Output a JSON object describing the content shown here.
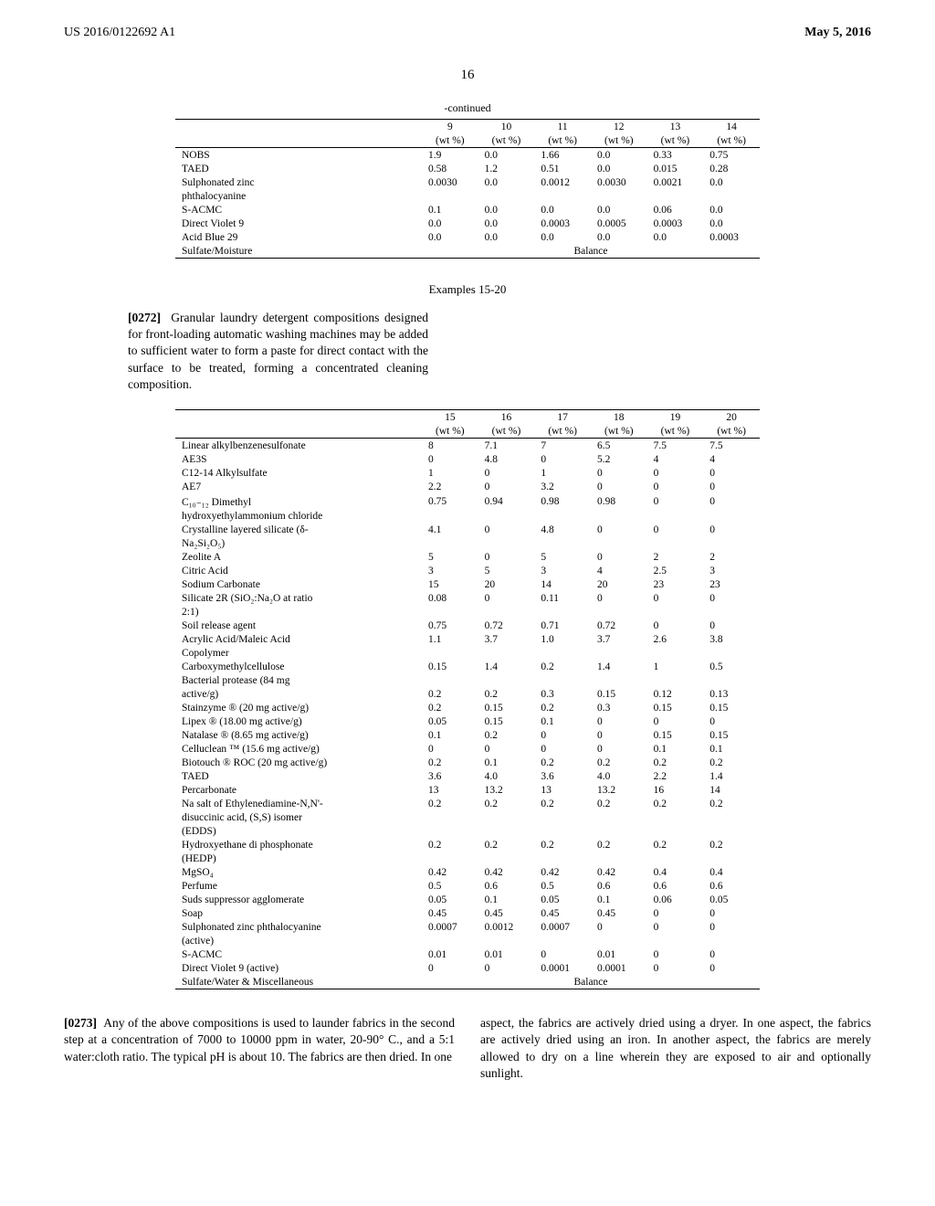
{
  "header": {
    "left": "US 2016/0122692 A1",
    "right": "May 5, 2016"
  },
  "page_number": "16",
  "continued_label": "-continued",
  "table1": {
    "col_headers_top": [
      "",
      "9",
      "10",
      "11",
      "12",
      "13",
      "14"
    ],
    "col_headers_bot": [
      "",
      "(wt %)",
      "(wt %)",
      "(wt %)",
      "(wt %)",
      "(wt %)",
      "(wt %)"
    ],
    "rows": [
      [
        "NOBS",
        "1.9",
        "0.0",
        "1.66",
        "0.0",
        "0.33",
        "0.75"
      ],
      [
        "TAED",
        "0.58",
        "1.2",
        "0.51",
        "0.0",
        "0.015",
        "0.28"
      ],
      [
        "Sulphonated zinc",
        "0.0030",
        "0.0",
        "0.0012",
        "0.0030",
        "0.0021",
        "0.0"
      ],
      [
        "phthalocyanine",
        "",
        "",
        "",
        "",
        "",
        ""
      ],
      [
        "S-ACMC",
        "0.1",
        "0.0",
        "0.0",
        "0.0",
        "0.06",
        "0.0"
      ],
      [
        "Direct Violet 9",
        "0.0",
        "0.0",
        "0.0003",
        "0.0005",
        "0.0003",
        "0.0"
      ],
      [
        "Acid Blue 29",
        "0.0",
        "0.0",
        "0.0",
        "0.0",
        "0.0",
        "0.0003"
      ]
    ],
    "balance_label": "Sulfate/Moisture",
    "balance_value": "Balance"
  },
  "examples_heading": "Examples 15-20",
  "para1_num": "[0272]",
  "para1": "Granular laundry detergent compositions designed for front-loading automatic washing machines may be added to sufficient water to form a paste for direct contact with the surface to be treated, forming a concentrated cleaning composition.",
  "table2": {
    "col_headers_top": [
      "",
      "15",
      "16",
      "17",
      "18",
      "19",
      "20"
    ],
    "col_headers_bot": [
      "",
      "(wt %)",
      "(wt %)",
      "(wt %)",
      "(wt %)",
      "(wt %)",
      "(wt %)"
    ],
    "rows": [
      [
        "Linear alkylbenzenesulfonate",
        "8",
        "7.1",
        "7",
        "6.5",
        "7.5",
        "7.5"
      ],
      [
        "AE3S",
        "0",
        "4.8",
        "0",
        "5.2",
        "4",
        "4"
      ],
      [
        "C12-14 Alkylsulfate",
        "1",
        "0",
        "1",
        "0",
        "0",
        "0"
      ],
      [
        "AE7",
        "2.2",
        "0",
        "3.2",
        "0",
        "0",
        "0"
      ],
      [
        "C₁₀₋₁₂ Dimethyl",
        "0.75",
        "0.94",
        "0.98",
        "0.98",
        "0",
        "0"
      ],
      [
        "hydroxyethylammonium chloride",
        "",
        "",
        "",
        "",
        "",
        ""
      ],
      [
        "Crystalline layered silicate (δ-",
        "4.1",
        "0",
        "4.8",
        "0",
        "0",
        "0"
      ],
      [
        "Na₂Si₂O₅)",
        "",
        "",
        "",
        "",
        "",
        ""
      ],
      [
        "Zeolite A",
        "5",
        "0",
        "5",
        "0",
        "2",
        "2"
      ],
      [
        "Citric Acid",
        "3",
        "5",
        "3",
        "4",
        "2.5",
        "3"
      ],
      [
        "Sodium Carbonate",
        "15",
        "20",
        "14",
        "20",
        "23",
        "23"
      ],
      [
        "Silicate 2R (SiO₂:Na₂O at ratio",
        "0.08",
        "0",
        "0.11",
        "0",
        "0",
        "0"
      ],
      [
        "2:1)",
        "",
        "",
        "",
        "",
        "",
        ""
      ],
      [
        "Soil release agent",
        "0.75",
        "0.72",
        "0.71",
        "0.72",
        "0",
        "0"
      ],
      [
        "Acrylic Acid/Maleic Acid",
        "1.1",
        "3.7",
        "1.0",
        "3.7",
        "2.6",
        "3.8"
      ],
      [
        "Copolymer",
        "",
        "",
        "",
        "",
        "",
        ""
      ],
      [
        "Carboxymethylcellulose",
        "0.15",
        "1.4",
        "0.2",
        "1.4",
        "1",
        "0.5"
      ],
      [
        "Bacterial protease (84 mg",
        "",
        "",
        "",
        "",
        "",
        ""
      ],
      [
        "active/g)",
        "0.2",
        "0.2",
        "0.3",
        "0.15",
        "0.12",
        "0.13"
      ],
      [
        "Stainzyme ® (20 mg active/g)",
        "0.2",
        "0.15",
        "0.2",
        "0.3",
        "0.15",
        "0.15"
      ],
      [
        "Lipex ® (18.00 mg active/g)",
        "0.05",
        "0.15",
        "0.1",
        "0",
        "0",
        "0"
      ],
      [
        "Natalase ® (8.65 mg active/g)",
        "0.1",
        "0.2",
        "0",
        "0",
        "0.15",
        "0.15"
      ],
      [
        "Celluclean ™ (15.6 mg active/g)",
        "0",
        "0",
        "0",
        "0",
        "0.1",
        "0.1"
      ],
      [
        "Biotouch ® ROC (20 mg active/g)",
        "0.2",
        "0.1",
        "0.2",
        "0.2",
        "0.2",
        "0.2"
      ],
      [
        "TAED",
        "3.6",
        "4.0",
        "3.6",
        "4.0",
        "2.2",
        "1.4"
      ],
      [
        "Percarbonate",
        "13",
        "13.2",
        "13",
        "13.2",
        "16",
        "14"
      ],
      [
        "Na salt of Ethylenediamine-N,N'-",
        "0.2",
        "0.2",
        "0.2",
        "0.2",
        "0.2",
        "0.2"
      ],
      [
        "disuccinic acid, (S,S) isomer",
        "",
        "",
        "",
        "",
        "",
        ""
      ],
      [
        "(EDDS)",
        "",
        "",
        "",
        "",
        "",
        ""
      ],
      [
        "Hydroxyethane di phosphonate",
        "0.2",
        "0.2",
        "0.2",
        "0.2",
        "0.2",
        "0.2"
      ],
      [
        "(HEDP)",
        "",
        "",
        "",
        "",
        "",
        ""
      ],
      [
        "MgSO₄",
        "0.42",
        "0.42",
        "0.42",
        "0.42",
        "0.4",
        "0.4"
      ],
      [
        "Perfume",
        "0.5",
        "0.6",
        "0.5",
        "0.6",
        "0.6",
        "0.6"
      ],
      [
        "Suds suppressor agglomerate",
        "0.05",
        "0.1",
        "0.05",
        "0.1",
        "0.06",
        "0.05"
      ],
      [
        "Soap",
        "0.45",
        "0.45",
        "0.45",
        "0.45",
        "0",
        "0"
      ],
      [
        "Sulphonated zinc phthalocyanine",
        "0.0007",
        "0.0012",
        "0.0007",
        "0",
        "0",
        "0"
      ],
      [
        "(active)",
        "",
        "",
        "",
        "",
        "",
        ""
      ],
      [
        "S-ACMC",
        "0.01",
        "0.01",
        "0",
        "0.01",
        "0",
        "0"
      ],
      [
        "Direct Violet 9 (active)",
        "0",
        "0",
        "0.0001",
        "0.0001",
        "0",
        "0"
      ]
    ],
    "balance_label": "Sulfate/Water & Miscellaneous",
    "balance_value": "Balance"
  },
  "para2_num": "[0273]",
  "para2_left": "Any of the above compositions is used to launder fabrics in the second step at a concentration of 7000 to 10000 ppm in water, 20-90° C., and a 5:1 water:cloth ratio. The typical pH is about 10. The fabrics are then dried. In one",
  "para2_right": "aspect, the fabrics are actively dried using a dryer. In one aspect, the fabrics are actively dried using an iron. In another aspect, the fabrics are merely allowed to dry on a line wherein they are exposed to air and optionally sunlight."
}
